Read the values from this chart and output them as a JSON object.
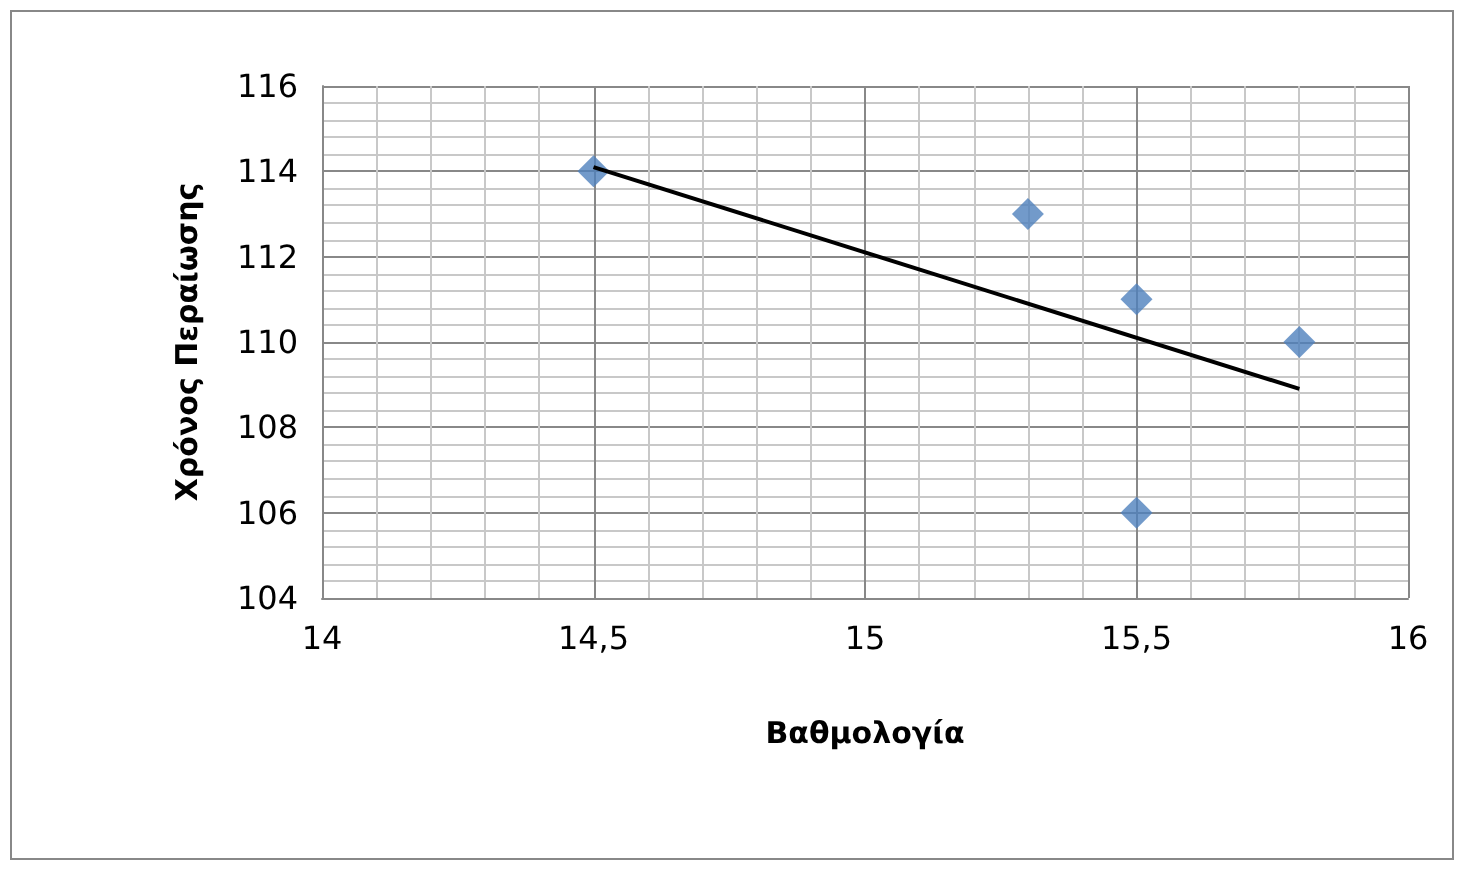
{
  "chart_data": {
    "type": "scatter",
    "xlabel": "Βαθμολογία",
    "ylabel": "Χρόνος Περαίωσης",
    "x": [
      14.5,
      15.3,
      15.5,
      15.5,
      15.8
    ],
    "series": [
      {
        "color": "#4f81bd",
        "marker": "diamond",
        "values": [
          114,
          113,
          111,
          106,
          110
        ]
      },
      {
        "type": "line",
        "color": "#000000",
        "marker": "none",
        "line_style": "solid",
        "x": [
          14.5,
          15.8
        ],
        "values": [
          114.1,
          108.9
        ]
      }
    ],
    "xlim": [
      14,
      16
    ],
    "xticks": [
      14,
      {
        "value": 14.5,
        "label": "14,5"
      },
      15,
      {
        "value": 15.5,
        "label": "15,5"
      },
      16
    ],
    "ylim": [
      104,
      116
    ],
    "yticks": [
      104,
      106,
      108,
      110,
      112,
      114,
      116
    ],
    "grid": true
  }
}
